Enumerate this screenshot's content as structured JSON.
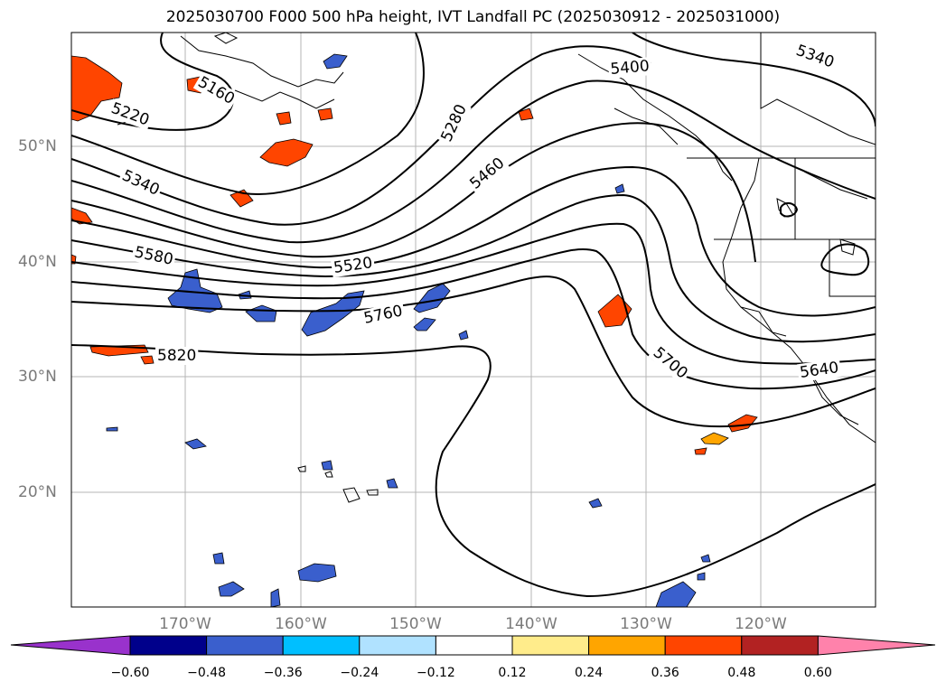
{
  "title": "2025030700 F000 500 hPa height, IVT Landfall PC (2025030912 - 2025031000)",
  "lat_labels": [
    "50°N",
    "40°N",
    "30°N",
    "20°N"
  ],
  "lon_labels": [
    "170°W",
    "160°W",
    "150°W",
    "140°W",
    "130°W",
    "120°W"
  ],
  "contour_labels": [
    "5160",
    "5220",
    "5280",
    "5340",
    "5400",
    "5460",
    "5520",
    "5580",
    "5640",
    "5700",
    "5760",
    "5820",
    "5340"
  ],
  "colorbar": {
    "ticks": [
      "−0.60",
      "−0.48",
      "−0.36",
      "−0.24",
      "−0.12",
      "0.12",
      "0.24",
      "0.36",
      "0.48",
      "0.60"
    ],
    "colors": [
      "#9932cc",
      "#00008b",
      "#3a5fcd",
      "#00bfff",
      "#b0e2ff",
      "#ffffff",
      "#ffec8b",
      "#ffa500",
      "#ff4500",
      "#b22222",
      "#ff82ab"
    ]
  },
  "colors": {
    "frame": "#000000",
    "grid": "#b4b4b4",
    "contour": "#000000",
    "coast": "#000000"
  }
}
